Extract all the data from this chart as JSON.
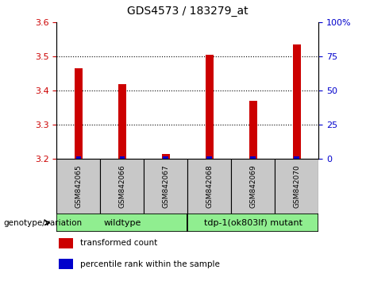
{
  "title": "GDS4573 / 183279_at",
  "samples": [
    "GSM842065",
    "GSM842066",
    "GSM842067",
    "GSM842068",
    "GSM842069",
    "GSM842070"
  ],
  "red_values": [
    3.465,
    3.42,
    3.215,
    3.505,
    3.37,
    3.535
  ],
  "blue_values": [
    2.0,
    2.0,
    2.0,
    2.0,
    2.0,
    2.0
  ],
  "baseline": 3.2,
  "ylim_left": [
    3.2,
    3.6
  ],
  "ylim_right": [
    0,
    100
  ],
  "yticks_left": [
    3.2,
    3.3,
    3.4,
    3.5,
    3.6
  ],
  "yticks_right": [
    0,
    25,
    50,
    75,
    100
  ],
  "ytick_labels_right": [
    "0",
    "25",
    "50",
    "75",
    "100%"
  ],
  "grid_ticks": [
    3.3,
    3.4,
    3.5
  ],
  "groups": [
    {
      "label": "wildtype",
      "start": 0,
      "end": 3
    },
    {
      "label": "tdp-1(ok803lf) mutant",
      "start": 3,
      "end": 6
    }
  ],
  "genotype_label": "genotype/variation",
  "legend_items": [
    {
      "color": "#cc0000",
      "label": "transformed count"
    },
    {
      "color": "#0000cc",
      "label": "percentile rank within the sample"
    }
  ],
  "red_bar_width": 0.18,
  "blue_bar_width": 0.12,
  "red_color": "#cc0000",
  "blue_color": "#0000cc",
  "left_tick_color": "#cc0000",
  "right_tick_color": "#0000cc",
  "sample_box_color": "#c8c8c8",
  "group_box_color": "#90ee90",
  "grid_color": "#000000"
}
